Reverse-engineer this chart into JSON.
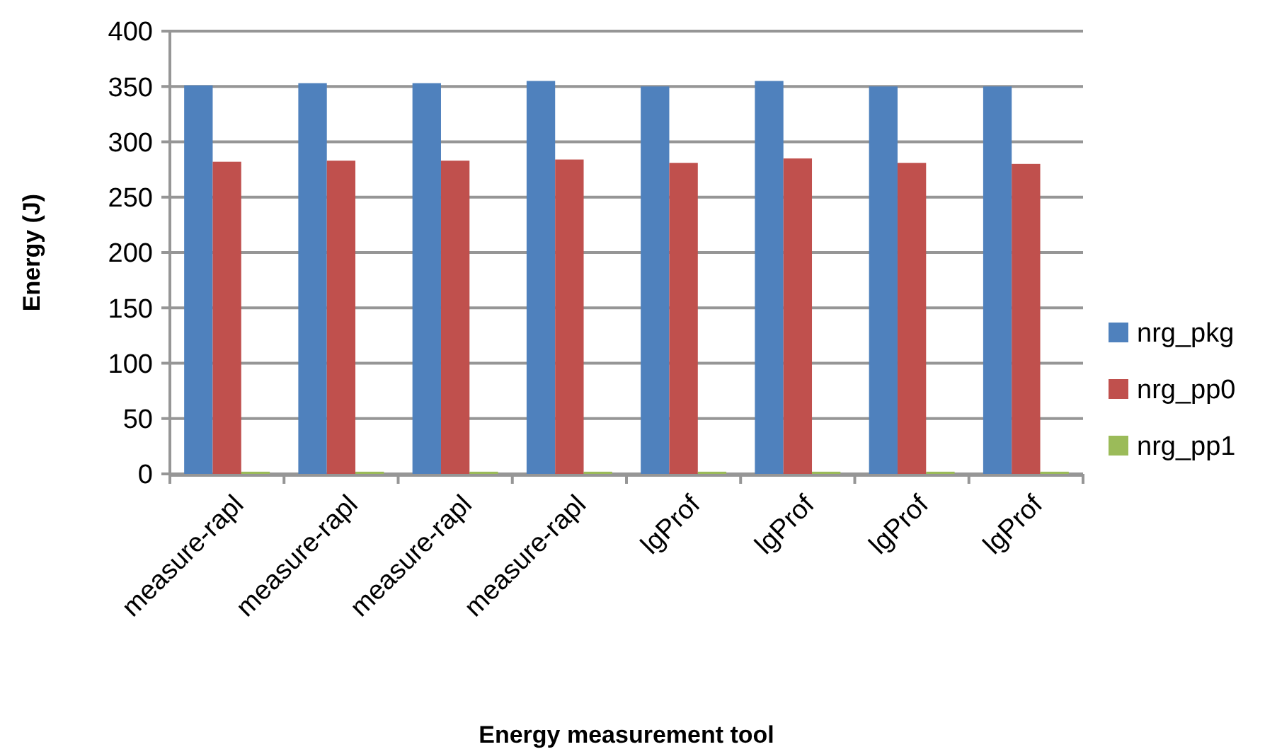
{
  "chart_data": {
    "type": "bar",
    "xlabel": "Energy measurement tool",
    "ylabel": "Energy (J)",
    "categories": [
      "measure-rapl",
      "measure-rapl",
      "measure-rapl",
      "measure-rapl",
      "lgProf",
      "lgProf",
      "lgProf",
      "lgProf"
    ],
    "series": [
      {
        "name": "nrg_pkg",
        "color": "#4f81bd",
        "values": [
          351,
          353,
          353,
          355,
          350,
          355,
          350,
          350
        ]
      },
      {
        "name": "nrg_pp0",
        "color": "#c0504d",
        "values": [
          282,
          283,
          283,
          284,
          281,
          285,
          281,
          280
        ]
      },
      {
        "name": "nrg_pp1",
        "color": "#9bbb59",
        "values": [
          2,
          2,
          2,
          2,
          2,
          2,
          2,
          2
        ]
      }
    ],
    "ylim": [
      0,
      400
    ],
    "yticks": [
      0,
      50,
      100,
      150,
      200,
      250,
      300,
      350,
      400
    ],
    "grid": "y",
    "legend": "right"
  }
}
